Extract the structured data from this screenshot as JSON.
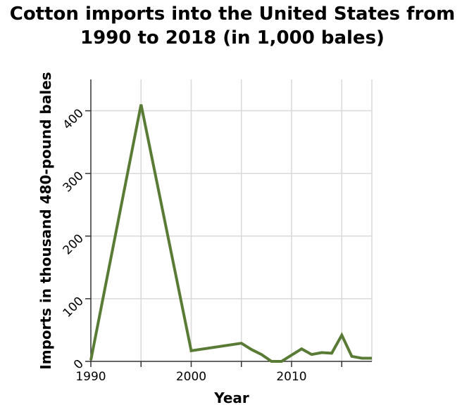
{
  "chart_data": {
    "type": "line",
    "title_line1": "Cotton imports into the United States from",
    "title_line2": "1990 to 2018 (in 1,000 bales)",
    "xlabel": "Year",
    "ylabel": "Imports in thousand 480-pound bales",
    "xlim": [
      1990,
      2018
    ],
    "ylim": [
      0,
      450
    ],
    "x_ticks": [
      1990,
      2000,
      2010
    ],
    "y_ticks": [
      0,
      100,
      200,
      300,
      400
    ],
    "grid": true,
    "line_color": "#5a7b35",
    "x": [
      1990,
      1995,
      2000,
      2005,
      2006,
      2007,
      2008,
      2009,
      2010,
      2011,
      2012,
      2013,
      2014,
      2015,
      2016,
      2017,
      2018
    ],
    "values": [
      2,
      410,
      17,
      29,
      19,
      11,
      0,
      0,
      10,
      20,
      11,
      14,
      13,
      42,
      8,
      5,
      5
    ]
  }
}
